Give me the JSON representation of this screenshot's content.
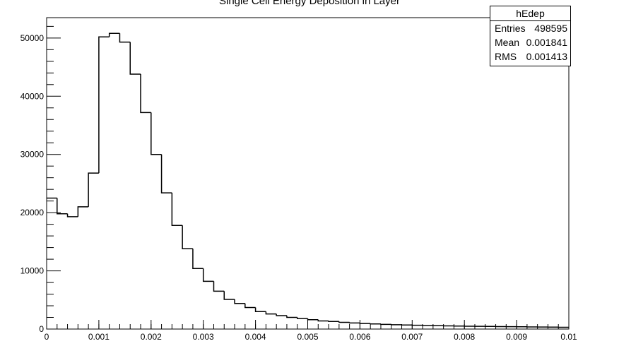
{
  "colors": {
    "line": "#000000",
    "background": "#ffffff"
  },
  "chart_data": {
    "type": "histogram",
    "title": "Single Cell Energy Deposition in Layer",
    "xlabel": "",
    "ylabel": "",
    "xlim": [
      0,
      0.01
    ],
    "ylim": [
      0,
      53500
    ],
    "x_ticks": [
      "0",
      "0.001",
      "0.002",
      "0.003",
      "0.004",
      "0.005",
      "0.006",
      "0.007",
      "0.008",
      "0.009",
      "0.01"
    ],
    "y_ticks": [
      "0",
      "10000",
      "20000",
      "30000",
      "40000",
      "50000"
    ],
    "grid": false,
    "bin_edges": [
      0,
      0.0002,
      0.0004,
      0.0006,
      0.0008,
      0.001,
      0.0012,
      0.0014,
      0.0016,
      0.0018,
      0.002,
      0.0022,
      0.0024,
      0.0026,
      0.0028,
      0.003,
      0.0032,
      0.0034,
      0.0036,
      0.0038,
      0.004,
      0.0042,
      0.0044,
      0.0046,
      0.0048,
      0.005,
      0.0052,
      0.0054,
      0.0056,
      0.0058,
      0.006,
      0.0062,
      0.0064,
      0.0066,
      0.0068,
      0.007,
      0.0072,
      0.0074,
      0.0076,
      0.0078,
      0.008,
      0.0082,
      0.0084,
      0.0086,
      0.0088,
      0.009,
      0.0092,
      0.0094,
      0.0096,
      0.0098,
      0.01
    ],
    "values": [
      22500,
      19800,
      19300,
      21000,
      26800,
      50200,
      50800,
      49300,
      43800,
      37200,
      30000,
      23400,
      17800,
      13800,
      10400,
      8200,
      6500,
      5100,
      4400,
      3700,
      3000,
      2600,
      2300,
      2000,
      1800,
      1600,
      1400,
      1300,
      1150,
      1050,
      950,
      880,
      800,
      750,
      700,
      650,
      610,
      580,
      550,
      520,
      490,
      470,
      450,
      430,
      410,
      390,
      370,
      350,
      330,
      310
    ],
    "stats": {
      "name": "hEdep",
      "rows": [
        {
          "label": "Entries",
          "value": "498595"
        },
        {
          "label": "Mean",
          "value": "0.001841"
        },
        {
          "label": "RMS",
          "value": "0.001413"
        }
      ]
    }
  }
}
